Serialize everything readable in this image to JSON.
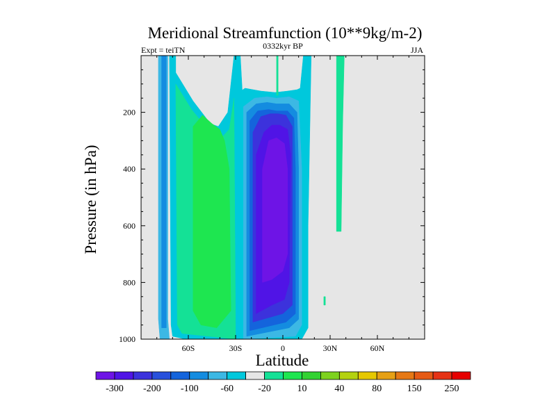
{
  "chart_data": {
    "type": "contour",
    "title": "Meridional Streamfunction (10**9kg/m-2)",
    "subtitle_left": "Expt = teiTN",
    "subtitle_center": "0332kyr BP",
    "subtitle_right": "JJA",
    "xlabel": "Latitude",
    "ylabel": "Pressure (in hPa)",
    "xlim": [
      -90,
      90
    ],
    "ylim": [
      0,
      1000
    ],
    "y_inverted": true,
    "x_ticks": [
      {
        "value": -60,
        "label": "60S"
      },
      {
        "value": -30,
        "label": "30S"
      },
      {
        "value": 0,
        "label": "0"
      },
      {
        "value": 30,
        "label": "30N"
      },
      {
        "value": 60,
        "label": "60N"
      }
    ],
    "y_ticks": [
      {
        "value": 200,
        "label": "200"
      },
      {
        "value": 400,
        "label": "400"
      },
      {
        "value": 600,
        "label": "600"
      },
      {
        "value": 800,
        "label": "800"
      },
      {
        "value": 1000,
        "label": "1000"
      }
    ],
    "background_color": "#e6e6e6",
    "regions": [
      {
        "name": "south-polar-cell",
        "polygon": [
          [
            -78,
            1000
          ],
          [
            -79,
            930
          ],
          [
            -79,
            0
          ],
          [
            -73,
            0
          ],
          [
            -73,
            930
          ],
          [
            -72,
            1000
          ]
        ],
        "color": "#3cb8e4"
      },
      {
        "name": "south-polar-core",
        "polygon": [
          [
            -77,
            960
          ],
          [
            -77,
            0
          ],
          [
            -74,
            0
          ],
          [
            -74,
            960
          ]
        ],
        "color": "#148ce0"
      },
      {
        "name": "southern-ferrel-outer",
        "polygon": [
          [
            -71,
            950
          ],
          [
            -72,
            0
          ],
          [
            -68,
            0
          ],
          [
            -68,
            60
          ],
          [
            -57,
            160
          ],
          [
            -46,
            240
          ],
          [
            -41,
            250
          ],
          [
            -35,
            200
          ],
          [
            -31,
            0
          ],
          [
            -27,
            0
          ],
          [
            -25,
            200
          ],
          [
            -25,
            1000
          ],
          [
            -62,
            1000
          ],
          [
            -70,
            990
          ]
        ],
        "color": "#00c8dc"
      },
      {
        "name": "southern-ferrel-mid",
        "polygon": [
          [
            -67,
            950
          ],
          [
            -68,
            100
          ],
          [
            -58,
            190
          ],
          [
            -46,
            270
          ],
          [
            -39,
            290
          ],
          [
            -34,
            260
          ],
          [
            -31,
            150
          ],
          [
            -30,
            1000
          ],
          [
            -64,
            980
          ]
        ],
        "color": "#14e196"
      },
      {
        "name": "southern-ferrel-core",
        "polygon": [
          [
            -57,
            900
          ],
          [
            -57,
            250
          ],
          [
            -51,
            210
          ],
          [
            -45,
            240
          ],
          [
            -40,
            260
          ],
          [
            -37,
            300
          ],
          [
            -34,
            400
          ],
          [
            -33,
            900
          ],
          [
            -42,
            960
          ],
          [
            -52,
            950
          ]
        ],
        "color": "#1ee650"
      },
      {
        "name": "hadley-outer",
        "polygon": [
          [
            -27,
            1000
          ],
          [
            -28,
            130
          ],
          [
            -24,
            115
          ],
          [
            -14,
            125
          ],
          [
            -5,
            130
          ],
          [
            3,
            125
          ],
          [
            9,
            120
          ],
          [
            11,
            115
          ],
          [
            13,
            0
          ],
          [
            18,
            0
          ],
          [
            16,
            600
          ],
          [
            16,
            960
          ],
          [
            12,
            1000
          ]
        ],
        "color": "#00c8dc"
      },
      {
        "name": "hadley-l20",
        "polygon": [
          [
            -25,
            1000
          ],
          [
            -25,
            180
          ],
          [
            -18,
            150
          ],
          [
            -10,
            145
          ],
          [
            -4,
            150
          ],
          [
            4,
            145
          ],
          [
            10,
            160
          ],
          [
            12,
            400
          ],
          [
            12,
            950
          ],
          [
            8,
            990
          ]
        ],
        "color": "#3cb8e4"
      },
      {
        "name": "hadley-l60",
        "polygon": [
          [
            -23,
            990
          ],
          [
            -23,
            200
          ],
          [
            -17,
            170
          ],
          [
            -10,
            165
          ],
          [
            -4,
            170
          ],
          [
            4,
            170
          ],
          [
            9,
            200
          ],
          [
            10,
            400
          ],
          [
            10,
            930
          ],
          [
            4,
            960
          ]
        ],
        "color": "#148ce0"
      },
      {
        "name": "hadley-l100",
        "polygon": [
          [
            -21,
            970
          ],
          [
            -21,
            230
          ],
          [
            -16,
            195
          ],
          [
            -9,
            190
          ],
          [
            -4,
            195
          ],
          [
            3,
            195
          ],
          [
            7,
            220
          ],
          [
            8,
            400
          ],
          [
            8,
            910
          ],
          [
            2,
            940
          ]
        ],
        "color": "#1464dc"
      },
      {
        "name": "hadley-l150",
        "polygon": [
          [
            -19,
            940
          ],
          [
            -19,
            270
          ],
          [
            -14,
            215
          ],
          [
            -8,
            205
          ],
          [
            -3,
            205
          ],
          [
            2,
            210
          ],
          [
            6,
            250
          ],
          [
            6,
            400
          ],
          [
            6,
            880
          ],
          [
            0,
            910
          ]
        ],
        "color": "#3c32dc"
      },
      {
        "name": "hadley-l200",
        "polygon": [
          [
            -17,
            910
          ],
          [
            -17,
            350
          ],
          [
            -12,
            270
          ],
          [
            -7,
            245
          ],
          [
            -2,
            245
          ],
          [
            3,
            260
          ],
          [
            5,
            350
          ],
          [
            4,
            800
          ],
          [
            1,
            860
          ],
          [
            -7,
            880
          ]
        ],
        "color": "#5014e6"
      },
      {
        "name": "hadley-core",
        "polygon": [
          [
            -13,
            800
          ],
          [
            -13,
            400
          ],
          [
            -9,
            300
          ],
          [
            -4,
            290
          ],
          [
            1,
            310
          ],
          [
            3,
            400
          ],
          [
            3,
            700
          ],
          [
            0,
            760
          ],
          [
            -7,
            790
          ]
        ],
        "color": "#6e14e6"
      },
      {
        "name": "tropical-streak",
        "polygon": [
          [
            -4,
            140
          ],
          [
            -4,
            0
          ],
          [
            -3,
            0
          ],
          [
            -3,
            140
          ]
        ],
        "color": "#14e196"
      },
      {
        "name": "northern-streak",
        "polygon": [
          [
            34,
            620
          ],
          [
            34,
            0
          ],
          [
            39,
            0
          ],
          [
            38,
            240
          ],
          [
            37,
            620
          ]
        ],
        "color": "#14e196"
      },
      {
        "name": "northern-streak-2",
        "polygon": [
          [
            26,
            880
          ],
          [
            26,
            850
          ],
          [
            27,
            850
          ],
          [
            27,
            880
          ]
        ],
        "color": "#14e196"
      }
    ],
    "colorbar": {
      "colors": [
        "#6e14e6",
        "#5014e6",
        "#3c32dc",
        "#2850dc",
        "#1464dc",
        "#148ce0",
        "#3cb8e4",
        "#00c8dc",
        "#e6e6e6",
        "#14e196",
        "#1ee650",
        "#32d232",
        "#7dd21e",
        "#b4d20f",
        "#e6c800",
        "#e6a014",
        "#e67814",
        "#e65a14",
        "#e63214",
        "#e60000"
      ],
      "labels": [
        "-300",
        "-200",
        "-100",
        "-60",
        "-20",
        "10",
        "40",
        "80",
        "150",
        "250"
      ]
    }
  }
}
